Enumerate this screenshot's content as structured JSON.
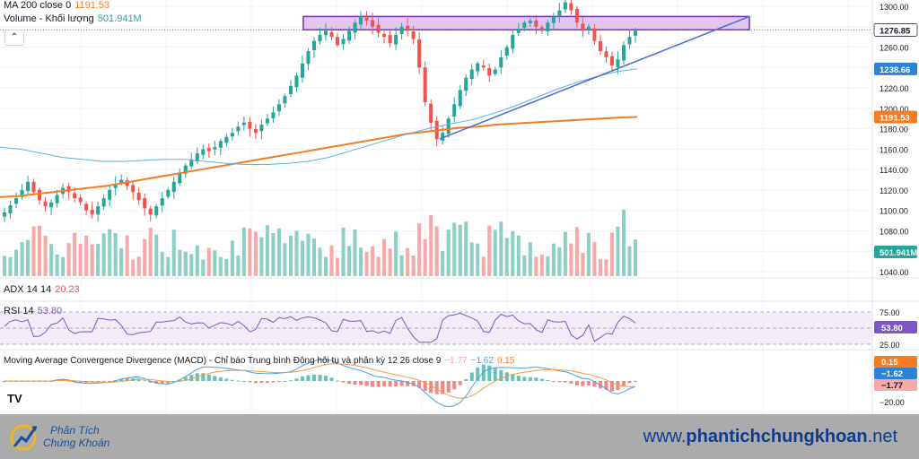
{
  "legend": {
    "ma_label": "MA 200 close 0",
    "ma_value": "1191.53",
    "vol_label": "Volume - Khối lượng",
    "vol_value": "501.941M",
    "adx_label": "ADX 14 14",
    "adx_value": "20.23",
    "rsi_label": "RSI 14",
    "rsi_value": "53.80",
    "macd_label": "Moving Average Convergence Divergence (MACD) - Chỉ báo Trung bình Động hội tụ và phân kỳ 12 26 close 9",
    "macd_v1": "−1.77",
    "macd_v2": "−1.62",
    "macd_v3": "0.15"
  },
  "colors": {
    "up": "#26a69a",
    "down": "#ef5350",
    "vol_up": "#8dcfc4",
    "vol_down": "#f7a9a7",
    "ma200": "#f57c20",
    "ma_blue": "#5fb2e2",
    "trend": "#4a6cd6",
    "zone_fill": "#d9b3f2",
    "zone_stroke": "#7a2bb0",
    "rsi": "#7e57c2",
    "macd": "#4a9fe0",
    "signal": "#f59b42"
  },
  "price_axis": {
    "ticks": [
      "1300.00",
      "1280.00",
      "1260.00",
      "1240.00",
      "1220.00",
      "1200.00",
      "1180.00",
      "1160.00",
      "1140.00",
      "1120.00",
      "1100.00",
      "1080.00",
      "1060.00",
      "1040.00"
    ],
    "tags": [
      {
        "text": "1276.85",
        "kind": "price"
      },
      {
        "text": "1238.66",
        "kind": "ma_blue"
      },
      {
        "text": "1191.53",
        "kind": "ma200"
      },
      {
        "text": "501.941M",
        "kind": "volume"
      }
    ]
  },
  "rsi_axis": {
    "ticks": [
      "75.00",
      "25.00"
    ],
    "tag": "53.80"
  },
  "macd_axis": {
    "ticks": [
      "−20.00"
    ],
    "tags": [
      "0.15",
      "−1.62",
      "−1.77"
    ]
  },
  "watermark": "TV",
  "footer": {
    "brand_line1": "Phân Tích",
    "brand_line2": "Chứng Khoán",
    "site_prefix": "www.",
    "site_main": "phantichchungkhoan",
    "site_suffix": ".net"
  },
  "chart_data": {
    "type": "candlestick",
    "price_range": [
      1030,
      1310
    ],
    "annotations": [
      "resistance zone 1277–1290",
      "rising trendline",
      "MA 200"
    ],
    "closes": [
      1098,
      1105,
      1112,
      1120,
      1128,
      1118,
      1110,
      1104,
      1108,
      1115,
      1122,
      1118,
      1112,
      1108,
      1100,
      1096,
      1104,
      1112,
      1120,
      1126,
      1130,
      1124,
      1118,
      1110,
      1102,
      1096,
      1104,
      1112,
      1120,
      1128,
      1136,
      1144,
      1150,
      1156,
      1160,
      1158,
      1162,
      1168,
      1172,
      1176,
      1182,
      1186,
      1180,
      1176,
      1184,
      1190,
      1196,
      1204,
      1212,
      1222,
      1232,
      1244,
      1256,
      1266,
      1272,
      1276,
      1270,
      1262,
      1268,
      1276,
      1284,
      1290,
      1286,
      1280,
      1274,
      1270,
      1264,
      1272,
      1280,
      1276,
      1268,
      1240,
      1206,
      1186,
      1170,
      1176,
      1190,
      1204,
      1218,
      1230,
      1238,
      1244,
      1240,
      1232,
      1238,
      1250,
      1260,
      1272,
      1278,
      1284,
      1286,
      1280,
      1276,
      1284,
      1290,
      1296,
      1304,
      1296,
      1284,
      1276,
      1280,
      1266,
      1256,
      1250,
      1242,
      1248,
      1262,
      1270,
      1276
    ],
    "ma200": [
      1113,
      1114,
      1116,
      1118,
      1120,
      1122,
      1124,
      1127,
      1130,
      1133,
      1136,
      1139,
      1142,
      1145,
      1148,
      1151,
      1154,
      1157,
      1160,
      1163,
      1166,
      1169,
      1172,
      1175,
      1177,
      1179,
      1181,
      1182,
      1184,
      1185,
      1186,
      1187,
      1188,
      1189,
      1190,
      1191,
      1191.5
    ],
    "ma_blue": [
      1162,
      1160,
      1156,
      1152,
      1150,
      1148,
      1148,
      1149,
      1150,
      1150,
      1148,
      1146,
      1145,
      1145,
      1146,
      1148,
      1152,
      1158,
      1164,
      1170,
      1176,
      1181,
      1185,
      1189,
      1195,
      1202,
      1210,
      1218,
      1225,
      1231,
      1236,
      1238.66
    ],
    "volume_note": "volume bars per candle, last 501.941M",
    "rsi_range": [
      25,
      75
    ],
    "macd_last": {
      "macd": -1.62,
      "signal": -1.77,
      "hist": 0.15
    }
  }
}
